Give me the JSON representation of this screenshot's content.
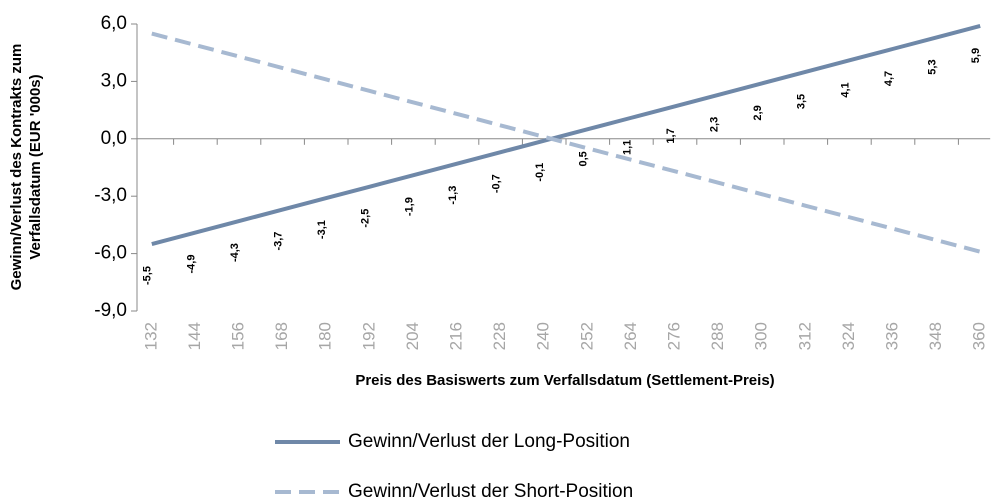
{
  "chart_data": {
    "type": "line",
    "ylabel": [
      "Gewinn/Verlust des Kontrakts zum",
      "Verfallsdatum (EUR '000s)"
    ],
    "xlabel": "Preis des Basiswerts zum Verfallsdatum (Settlement-Preis)",
    "categories": [
      "132",
      "144",
      "156",
      "168",
      "180",
      "192",
      "204",
      "216",
      "228",
      "240",
      "252",
      "264",
      "276",
      "288",
      "300",
      "312",
      "324",
      "336",
      "348",
      "360"
    ],
    "series": [
      {
        "name": "Gewinn/Verlust der Long-Position",
        "color": "#6f88a8",
        "dash": false,
        "values": [
          -5.5,
          -4.9,
          -4.3,
          -3.7,
          -3.1,
          -2.5,
          -1.9,
          -1.3,
          -0.7,
          -0.1,
          0.5,
          1.1,
          1.7,
          2.3,
          2.9,
          3.5,
          4.1,
          4.7,
          5.3,
          5.9
        ],
        "value_labels": [
          "-5,5",
          "-4,9",
          "-4,3",
          "-3,7",
          "-3,1",
          "-2,5",
          "-1,9",
          "-1,3",
          "-0,7",
          "-0,1",
          "0,5",
          "1,1",
          "1,7",
          "2,3",
          "2,9",
          "3,5",
          "4,1",
          "4,7",
          "5,3",
          "5,9"
        ]
      },
      {
        "name": "Gewinn/Verlust der Short-Position",
        "color": "#a7b9d1",
        "dash": true,
        "values": [
          5.5,
          4.9,
          4.3,
          3.7,
          3.1,
          2.5,
          1.9,
          1.3,
          0.7,
          0.1,
          -0.5,
          -1.1,
          -1.7,
          -2.3,
          -2.9,
          -3.5,
          -4.1,
          -4.7,
          -5.3,
          -5.9
        ]
      }
    ],
    "ylim": [
      -9,
      6
    ],
    "yticks": [
      {
        "value": -9,
        "label": "-9,0"
      },
      {
        "value": -6,
        "label": "-6,0"
      },
      {
        "value": -3,
        "label": "-3,0"
      },
      {
        "value": 0,
        "label": "0,0"
      },
      {
        "value": 3,
        "label": "3,0"
      },
      {
        "value": 6,
        "label": "6,0"
      }
    ]
  }
}
